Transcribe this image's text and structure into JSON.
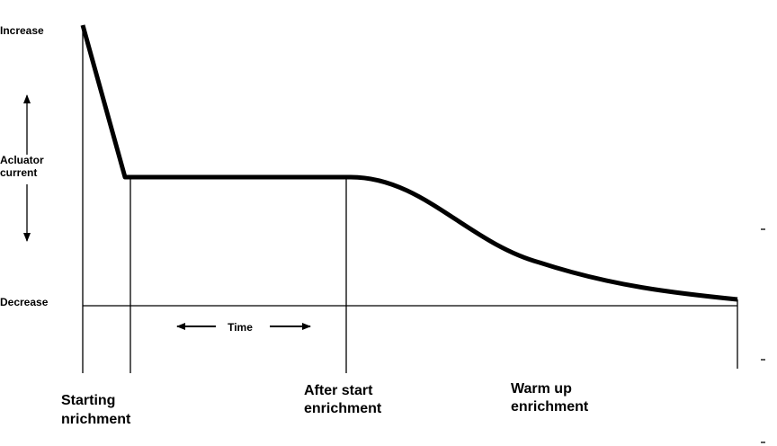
{
  "axis_labels": {
    "top": "Increase",
    "middle": [
      "Acluator",
      "current"
    ],
    "bottom": "Decrease"
  },
  "time_label": "Time",
  "phases": [
    {
      "lines": [
        "Starting",
        "nrichment"
      ]
    },
    {
      "lines": [
        "After start",
        "enrichment"
      ]
    },
    {
      "lines": [
        "Warm up",
        "enrichment"
      ]
    }
  ]
}
